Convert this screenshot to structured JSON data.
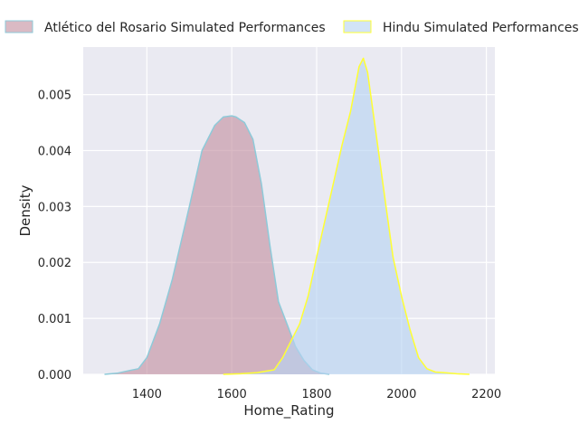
{
  "chart_data": {
    "type": "area",
    "xlabel": "Home_Rating",
    "ylabel": "Density",
    "xlim": [
      1250,
      2220
    ],
    "ylim": [
      0,
      0.00585
    ],
    "xticks": [
      1400,
      1600,
      1800,
      2000,
      2200
    ],
    "yticks": [
      0.0,
      0.001,
      0.002,
      0.003,
      0.004,
      0.005
    ],
    "ytick_labels": [
      "0.000",
      "0.001",
      "0.002",
      "0.003",
      "0.004",
      "0.005"
    ],
    "grid": true,
    "legend_placement": "top",
    "series": [
      {
        "name": "Atlético del Rosario Simulated Performances",
        "fill": "#c48f9f",
        "line": "#8ecad9",
        "x": [
          1300,
          1330,
          1360,
          1380,
          1400,
          1430,
          1460,
          1500,
          1530,
          1560,
          1580,
          1600,
          1610,
          1630,
          1650,
          1670,
          1690,
          1710,
          1730,
          1750,
          1770,
          1790,
          1810,
          1830
        ],
        "y": [
          0.0,
          2e-05,
          7e-05,
          0.0001,
          0.0003,
          0.0009,
          0.0017,
          0.003,
          0.004,
          0.00445,
          0.0046,
          0.00462,
          0.0046,
          0.0045,
          0.0042,
          0.0034,
          0.0023,
          0.0013,
          0.0009,
          0.0005,
          0.00025,
          8e-05,
          2e-05,
          0.0
        ]
      },
      {
        "name": "Hindu Simulated Performances",
        "fill": "#b6d3f2",
        "line": "#ffff33",
        "x": [
          1580,
          1620,
          1660,
          1700,
          1720,
          1740,
          1760,
          1780,
          1800,
          1830,
          1860,
          1880,
          1900,
          1910,
          1920,
          1940,
          1960,
          1980,
          2000,
          2020,
          2040,
          2060,
          2080,
          2100,
          2130,
          2160
        ],
        "y": [
          0.0,
          1e-05,
          3e-05,
          8e-05,
          0.0003,
          0.0006,
          0.0009,
          0.0014,
          0.0021,
          0.0031,
          0.0041,
          0.0047,
          0.0055,
          0.00565,
          0.0054,
          0.0043,
          0.0032,
          0.0021,
          0.0014,
          0.0008,
          0.0003,
          0.0001,
          4e-05,
          3e-05,
          1e-05,
          0.0
        ]
      }
    ]
  }
}
